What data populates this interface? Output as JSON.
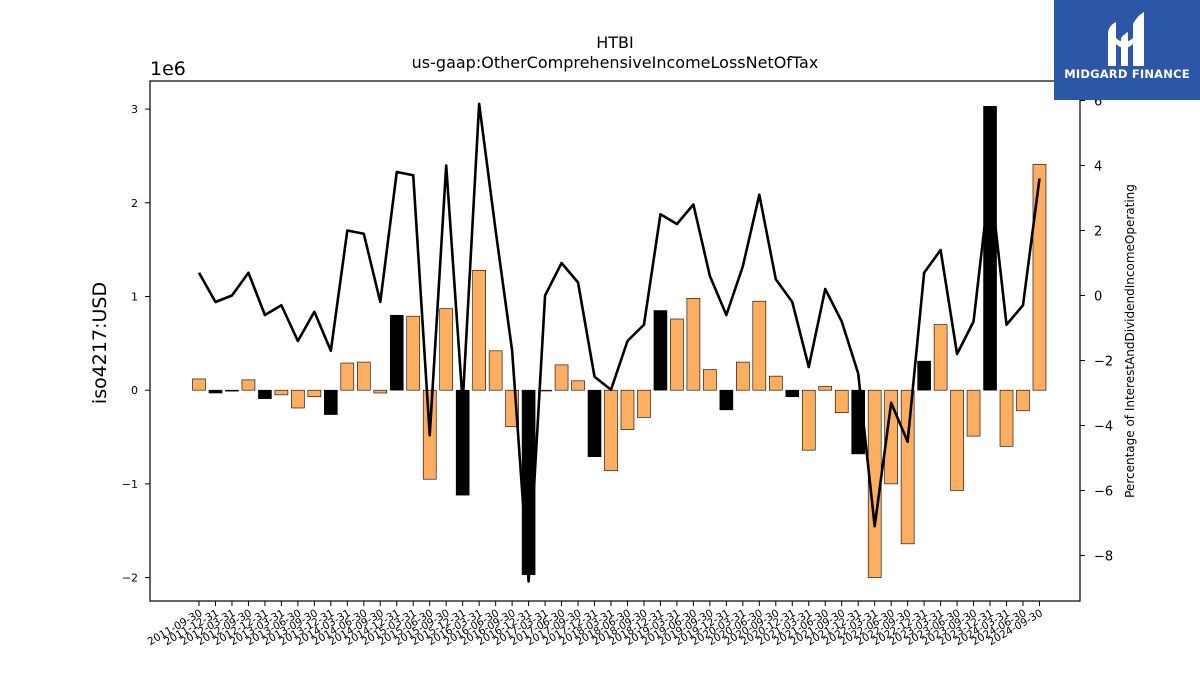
{
  "brand": {
    "name": "MIDGARD FINANCE",
    "background": "#2c57a8"
  },
  "chart_data": {
    "type": "bar+line",
    "title": "HTBI",
    "subtitle": "us-gaap:OtherComprehensiveIncomeLossNetOfTax",
    "ylabel": "iso4217:USD",
    "y_multiplier_label": "1e6",
    "y2label": "Percentage of InterestAndDividendIncomeOperating",
    "ylim": [
      -2.25,
      3.3
    ],
    "y2lim": [
      -9.4,
      6.6
    ],
    "yticks": [
      -2,
      -1,
      0,
      1,
      2,
      3
    ],
    "y2ticks": [
      -8,
      -6,
      -4,
      -2,
      0,
      2,
      4,
      6
    ],
    "xtick_labels": [
      "2011-09-30",
      "2011-12-31",
      "2012-03-31",
      "2012-09-30",
      "2012-12-31",
      "2013-03-31",
      "2013-06-30",
      "2013-09-30",
      "2013-12-31",
      "2014-03-31",
      "2014-06-30",
      "2014-09-30",
      "2014-12-31",
      "2015-03-31",
      "2015-06-30",
      "2015-09-30",
      "2015-12-31",
      "2016-03-31",
      "2016-06-30",
      "2016-09-30",
      "2016-12-31",
      "2017-03-31",
      "2017-06-30",
      "2017-09-30",
      "2017-12-31",
      "2018-03-31",
      "2018-06-30",
      "2018-09-30",
      "2018-12-31",
      "2019-03-31",
      "2019-06-30",
      "2019-09-30",
      "2019-12-31",
      "2020-03-31",
      "2020-06-30",
      "2020-09-30",
      "2020-12-31",
      "2021-03-31",
      "2021-06-30",
      "2021-09-30",
      "2021-12-31",
      "2022-03-31",
      "2022-06-30",
      "2022-09-30",
      "2022-12-31",
      "2023-03-31",
      "2023-06-30",
      "2023-09-30",
      "2023-12-31",
      "2024-03-31",
      "2024-06-30",
      "2024-09-30"
    ],
    "series": [
      {
        "kind": "bar",
        "unit": "1e6 USD",
        "values": [
          0.12,
          -0.03,
          -0.01,
          0.11,
          -0.09,
          -0.05,
          -0.19,
          -0.07,
          -0.26,
          0.29,
          0.3,
          -0.03,
          0.8,
          0.79,
          -0.95,
          0.87,
          -1.12,
          1.28,
          0.42,
          -0.39,
          -1.97,
          0.0,
          0.27,
          0.1,
          -0.71,
          -0.86,
          -0.42,
          -0.29,
          0.85,
          0.76,
          0.98,
          0.22,
          -0.21,
          0.3,
          0.95,
          0.15,
          -0.07,
          -0.64,
          0.04,
          -0.24,
          -0.68,
          -2.0,
          -1.0,
          -1.64,
          0.31,
          0.7,
          -1.07,
          -0.49,
          3.03,
          -0.6,
          -0.22,
          2.41
        ],
        "colors": [
          "#fdae61",
          "#000000",
          "#000000",
          "#fdae61",
          "#000000",
          "#fdae61",
          "#fdae61",
          "#fdae61",
          "#000000",
          "#fdae61",
          "#fdae61",
          "#fdae61",
          "#000000",
          "#fdae61",
          "#fdae61",
          "#fdae61",
          "#000000",
          "#fdae61",
          "#fdae61",
          "#fdae61",
          "#000000",
          "#fdae61",
          "#fdae61",
          "#fdae61",
          "#000000",
          "#fdae61",
          "#fdae61",
          "#fdae61",
          "#000000",
          "#fdae61",
          "#fdae61",
          "#fdae61",
          "#000000",
          "#fdae61",
          "#fdae61",
          "#fdae61",
          "#000000",
          "#fdae61",
          "#fdae61",
          "#fdae61",
          "#000000",
          "#fdae61",
          "#fdae61",
          "#fdae61",
          "#000000",
          "#fdae61",
          "#fdae61",
          "#fdae61",
          "#000000",
          "#fdae61",
          "#fdae61",
          "#fdae61"
        ]
      },
      {
        "kind": "line",
        "axis": "right",
        "unit": "%",
        "values": [
          0.7,
          -0.2,
          0.0,
          0.7,
          -0.6,
          -0.3,
          -1.4,
          -0.5,
          -1.7,
          2.0,
          1.9,
          -0.2,
          3.8,
          3.7,
          -4.3,
          4.0,
          -3.3,
          5.9,
          2.0,
          -1.7,
          -8.8,
          0.0,
          1.0,
          0.4,
          -2.5,
          -2.9,
          -1.4,
          -0.9,
          2.5,
          2.2,
          2.8,
          0.6,
          -0.6,
          0.9,
          3.1,
          0.5,
          -0.2,
          -2.2,
          0.2,
          -0.8,
          -2.4,
          -7.1,
          -3.3,
          -4.5,
          0.7,
          1.4,
          -1.8,
          -0.8,
          3.6,
          -0.9,
          -0.3,
          3.6
        ]
      }
    ],
    "colors": {
      "positive_bar": "#fdae61",
      "highlight_bar": "#000000",
      "line": "#000000"
    },
    "grid": false,
    "legend": "none"
  }
}
